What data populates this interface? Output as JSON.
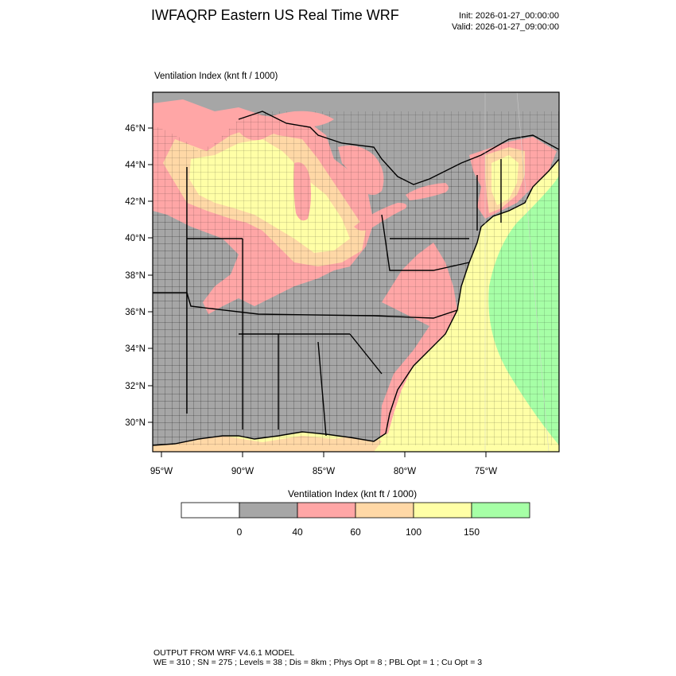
{
  "header": {
    "title": "IWFAQRP Eastern US Real Time WRF",
    "init": "Init: 2026-01-27_00:00:00",
    "valid": "Valid: 2026-01-27_09:00:00"
  },
  "plot": {
    "field_label": "Ventilation Index   (knt ft / 1000)",
    "lat_labels": [
      "46°N",
      "44°N",
      "42°N",
      "40°N",
      "38°N",
      "36°N",
      "34°N",
      "32°N",
      "30°N"
    ],
    "lon_labels": [
      "95°W",
      "90°W",
      "85°W",
      "80°W",
      "75°W"
    ]
  },
  "legend": {
    "title": "Ventilation Index  (knt ft / 1000)",
    "bins": [
      {
        "color": "#ffffff"
      },
      {
        "color": "#a6a6a6"
      },
      {
        "color": "#ffa6a6"
      },
      {
        "color": "#ffd8a6"
      },
      {
        "color": "#ffffa6"
      },
      {
        "color": "#a6ffa6"
      }
    ],
    "thresholds": [
      "0",
      "40",
      "60",
      "100",
      "150"
    ]
  },
  "colors": {
    "land_low": "#a6a6a6",
    "poor": "#ffa6a6",
    "marginal": "#ffd8a6",
    "fair": "#ffffa6",
    "good": "#a6ffa6",
    "border": "#000000"
  },
  "footer": {
    "line1": "OUTPUT FROM WRF V4.6.1 MODEL",
    "line2": "WE = 310 ; SN = 275 ; Levels = 38 ; Dis = 8km ; Phys Opt = 8 ; PBL Opt = 1 ; Cu Opt = 3"
  }
}
